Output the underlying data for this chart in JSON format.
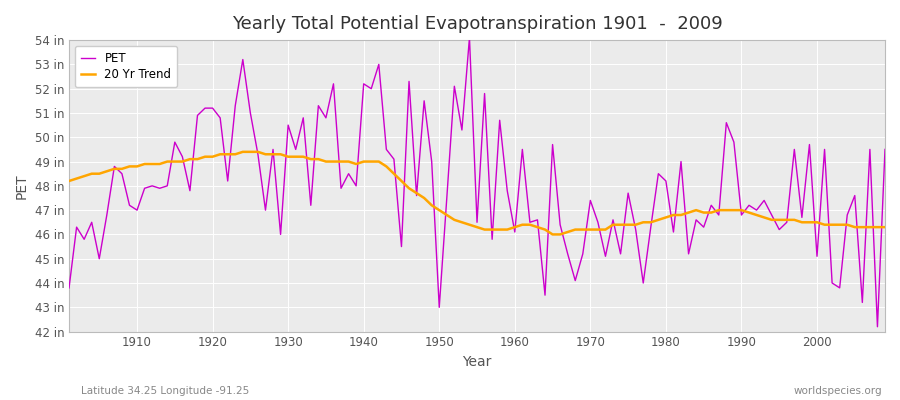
{
  "title": "Yearly Total Potential Evapotranspiration 1901  -  2009",
  "xlabel": "Year",
  "ylabel": "PET",
  "subtitle_left": "Latitude 34.25 Longitude -91.25",
  "subtitle_right": "worldspecies.org",
  "pet_color": "#cc00cc",
  "trend_color": "#FFA500",
  "bg_color": "#ffffff",
  "plot_bg_color": "#ebebeb",
  "ylim_min": 42,
  "ylim_max": 54,
  "years": [
    1901,
    1902,
    1903,
    1904,
    1905,
    1906,
    1907,
    1908,
    1909,
    1910,
    1911,
    1912,
    1913,
    1914,
    1915,
    1916,
    1917,
    1918,
    1919,
    1920,
    1921,
    1922,
    1923,
    1924,
    1925,
    1926,
    1927,
    1928,
    1929,
    1930,
    1931,
    1932,
    1933,
    1934,
    1935,
    1936,
    1937,
    1938,
    1939,
    1940,
    1941,
    1942,
    1943,
    1944,
    1945,
    1946,
    1947,
    1948,
    1949,
    1950,
    1951,
    1952,
    1953,
    1954,
    1955,
    1956,
    1957,
    1958,
    1959,
    1960,
    1961,
    1962,
    1963,
    1964,
    1965,
    1966,
    1967,
    1968,
    1969,
    1970,
    1971,
    1972,
    1973,
    1974,
    1975,
    1976,
    1977,
    1978,
    1979,
    1980,
    1981,
    1982,
    1983,
    1984,
    1985,
    1986,
    1987,
    1988,
    1989,
    1990,
    1991,
    1992,
    1993,
    1994,
    1995,
    1996,
    1997,
    1998,
    1999,
    2000,
    2001,
    2002,
    2003,
    2004,
    2005,
    2006,
    2007,
    2008,
    2009
  ],
  "pet_values": [
    43.8,
    46.3,
    45.8,
    46.5,
    45.0,
    46.8,
    48.8,
    48.5,
    47.2,
    47.0,
    47.9,
    48.0,
    47.9,
    48.0,
    49.8,
    49.2,
    47.8,
    50.9,
    51.2,
    51.2,
    50.8,
    48.2,
    51.3,
    53.2,
    51.0,
    49.3,
    47.0,
    49.5,
    46.0,
    50.5,
    49.5,
    50.8,
    47.2,
    51.3,
    50.8,
    52.2,
    47.9,
    48.5,
    48.0,
    52.2,
    52.0,
    53.0,
    49.5,
    49.1,
    45.5,
    52.3,
    47.6,
    51.5,
    49.0,
    43.0,
    47.5,
    52.1,
    50.3,
    54.1,
    46.5,
    51.8,
    45.8,
    50.7,
    47.8,
    46.1,
    49.5,
    46.5,
    46.6,
    43.5,
    49.7,
    46.4,
    45.2,
    44.1,
    45.2,
    47.4,
    46.5,
    45.1,
    46.6,
    45.2,
    47.7,
    46.2,
    44.0,
    46.3,
    48.5,
    48.2,
    46.1,
    49.0,
    45.2,
    46.6,
    46.3,
    47.2,
    46.8,
    50.6,
    49.8,
    46.8,
    47.2,
    47.0,
    47.4,
    46.8,
    46.2,
    46.5,
    49.5,
    46.7,
    49.7,
    45.1,
    49.5,
    44.0,
    43.8,
    46.8,
    47.6,
    43.2,
    49.5,
    42.2,
    49.5
  ],
  "trend_values": [
    48.2,
    48.3,
    48.4,
    48.5,
    48.5,
    48.6,
    48.7,
    48.7,
    48.8,
    48.8,
    48.9,
    48.9,
    48.9,
    49.0,
    49.0,
    49.0,
    49.1,
    49.1,
    49.2,
    49.2,
    49.3,
    49.3,
    49.3,
    49.4,
    49.4,
    49.4,
    49.3,
    49.3,
    49.3,
    49.2,
    49.2,
    49.2,
    49.1,
    49.1,
    49.0,
    49.0,
    49.0,
    49.0,
    48.9,
    49.0,
    49.0,
    49.0,
    48.8,
    48.5,
    48.2,
    47.9,
    47.7,
    47.5,
    47.2,
    47.0,
    46.8,
    46.6,
    46.5,
    46.4,
    46.3,
    46.2,
    46.2,
    46.2,
    46.2,
    46.3,
    46.4,
    46.4,
    46.3,
    46.2,
    46.0,
    46.0,
    46.1,
    46.2,
    46.2,
    46.2,
    46.2,
    46.2,
    46.4,
    46.4,
    46.4,
    46.4,
    46.5,
    46.5,
    46.6,
    46.7,
    46.8,
    46.8,
    46.9,
    47.0,
    46.9,
    46.9,
    47.0,
    47.0,
    47.0,
    47.0,
    46.9,
    46.8,
    46.7,
    46.6,
    46.6,
    46.6,
    46.6,
    46.5,
    46.5,
    46.5,
    46.4,
    46.4,
    46.4,
    46.4,
    46.3,
    46.3,
    46.3,
    46.3,
    46.3
  ]
}
